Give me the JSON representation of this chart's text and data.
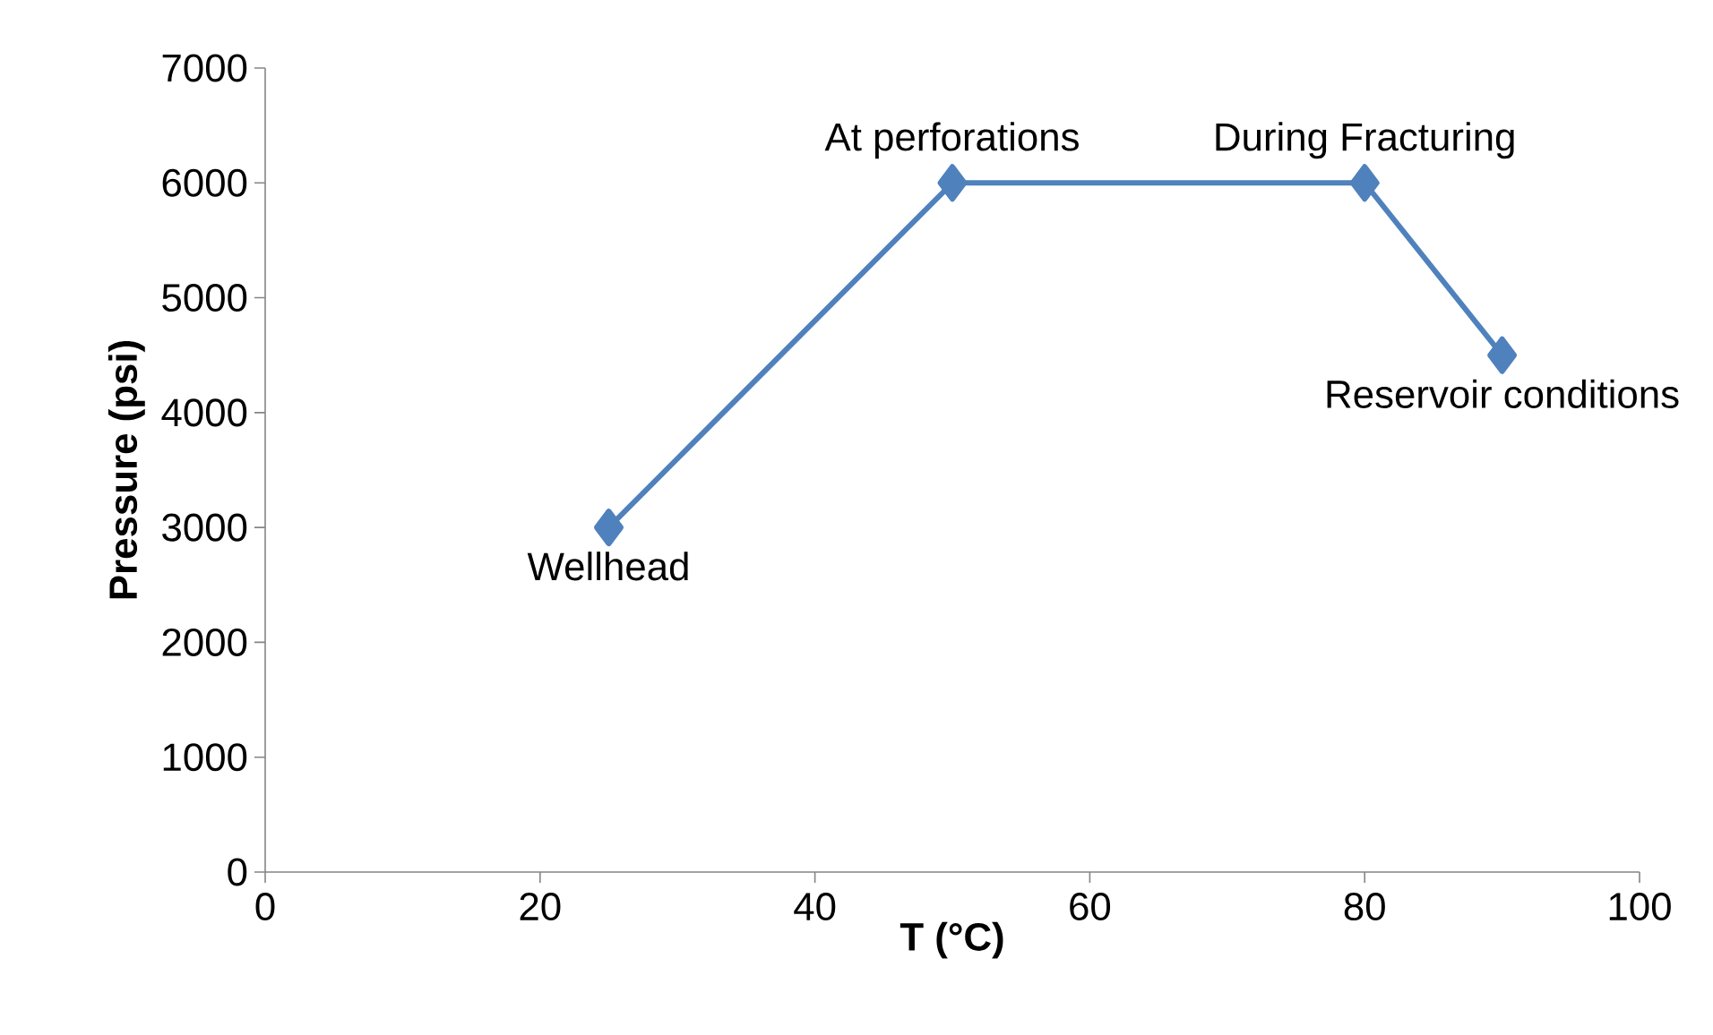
{
  "chart_data": {
    "type": "line",
    "xlabel": "T (°C)",
    "ylabel": "Pressure (psi)",
    "x": [
      25,
      50,
      80,
      90
    ],
    "series": [
      {
        "color": "#4f81bd",
        "values": [
          3000,
          6000,
          6000,
          4500
        ]
      }
    ],
    "xlim": [
      0,
      100
    ],
    "xticks": [
      0,
      20,
      40,
      60,
      80,
      100
    ],
    "ylim": [
      0,
      7000
    ],
    "yticks": [
      0,
      1000,
      2000,
      3000,
      4000,
      5000,
      6000,
      7000
    ],
    "marker": "diamond",
    "line_style": "solid",
    "annotations": [
      {
        "text": "Wellhead",
        "x": 25,
        "y": 3000
      },
      {
        "text": "At perforations",
        "x": 50,
        "y": 6000
      },
      {
        "text": "During Fracturing",
        "x": 80,
        "y": 6000
      },
      {
        "text": "Reservoir conditions",
        "x": 90,
        "y": 4500
      }
    ]
  }
}
